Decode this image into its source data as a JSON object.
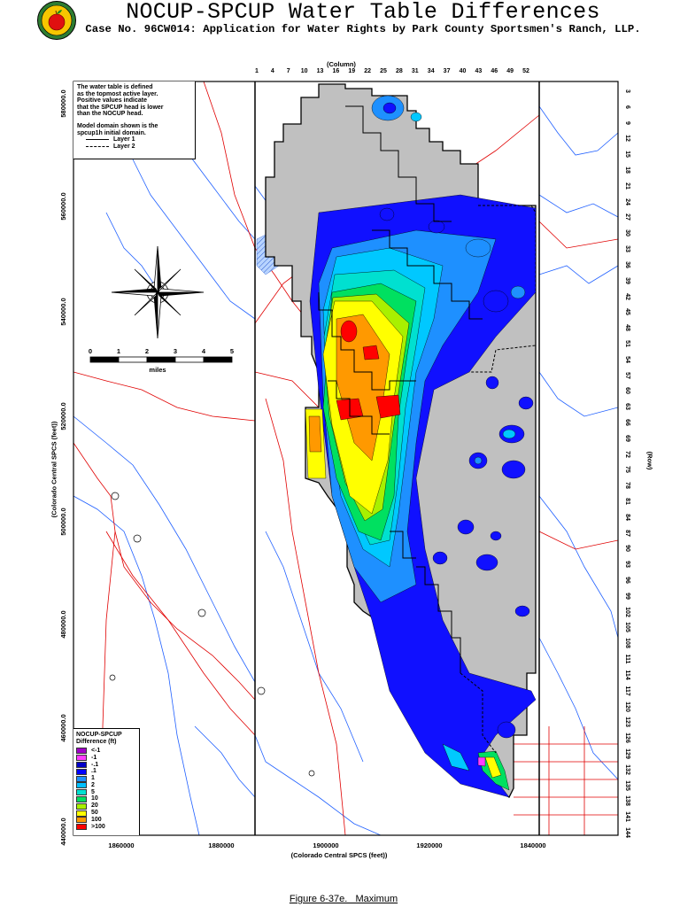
{
  "header": {
    "logo_icon": "apple-seal-icon",
    "title": "NOCUP-SPCUP Water Table Differences",
    "subtitle": "Case No. 96CW014: Application for Water Rights by Park County Sportsmen's Ranch, LLP."
  },
  "note": {
    "lines": [
      "The water table is defined",
      "as the topmost active layer.",
      "Positive values indicate",
      "that the SPCUP head is lower",
      "than the NOCUP head."
    ],
    "domain_lines": [
      "Model domain shown is the",
      "spcup1h initial domain."
    ],
    "layers": [
      "Layer 1",
      "Layer 2"
    ]
  },
  "axes": {
    "column_label": "(Column)",
    "column_ticks": [
      "1",
      "4",
      "7",
      "10",
      "13",
      "16",
      "19",
      "22",
      "25",
      "28",
      "31",
      "34",
      "37",
      "40",
      "43",
      "46",
      "49",
      "52"
    ],
    "row_label": "(Row)",
    "row_ticks": [
      "3",
      "6",
      "9",
      "12",
      "15",
      "18",
      "21",
      "24",
      "27",
      "30",
      "33",
      "36",
      "39",
      "42",
      "45",
      "48",
      "51",
      "54",
      "57",
      "60",
      "63",
      "66",
      "69",
      "72",
      "75",
      "78",
      "81",
      "84",
      "87",
      "90",
      "93",
      "96",
      "99",
      "102",
      "105",
      "108",
      "111",
      "114",
      "117",
      "120",
      "123",
      "126",
      "129",
      "132",
      "135",
      "138",
      "141",
      "144"
    ],
    "y_label": "(Colorado Central SPCS (feet))",
    "y_ticks": [
      "580000.0",
      "560000.0",
      "540000.0",
      "520000.0",
      "500000.0",
      "480000.0",
      "460000.0",
      "440000.0"
    ],
    "x_label": "(Colorado Central SPCS (feet))",
    "x_ticks": [
      "1860000",
      "1880000",
      "1900000",
      "1920000",
      "1840000"
    ]
  },
  "scale_bar": {
    "ticks": [
      "0",
      "1",
      "2",
      "3",
      "4",
      "5"
    ],
    "unit": "miles"
  },
  "compass": {
    "icon": "compass-rose-icon"
  },
  "legend": {
    "title": "NOCUP-SPCUP",
    "subtitle": "Difference (ft)",
    "entries": [
      {
        "label": "<-1",
        "color": "#a000c8"
      },
      {
        "label": "-1",
        "color": "#ff3cff"
      },
      {
        "label": "-.1",
        "color": "#0000c8"
      },
      {
        "label": ".1",
        "color": "#0000ff"
      },
      {
        "label": "1",
        "color": "#1e90ff"
      },
      {
        "label": "2",
        "color": "#00bfff"
      },
      {
        "label": "5",
        "color": "#00e0d0"
      },
      {
        "label": "10",
        "color": "#00e060"
      },
      {
        "label": "20",
        "color": "#a8f000"
      },
      {
        "label": "50",
        "color": "#ffff00"
      },
      {
        "label": "100",
        "color": "#ff9900"
      },
      {
        "label": ">100",
        "color": "#ff0000"
      }
    ]
  },
  "caption": "Figure 6-37e.   Maximum"
}
